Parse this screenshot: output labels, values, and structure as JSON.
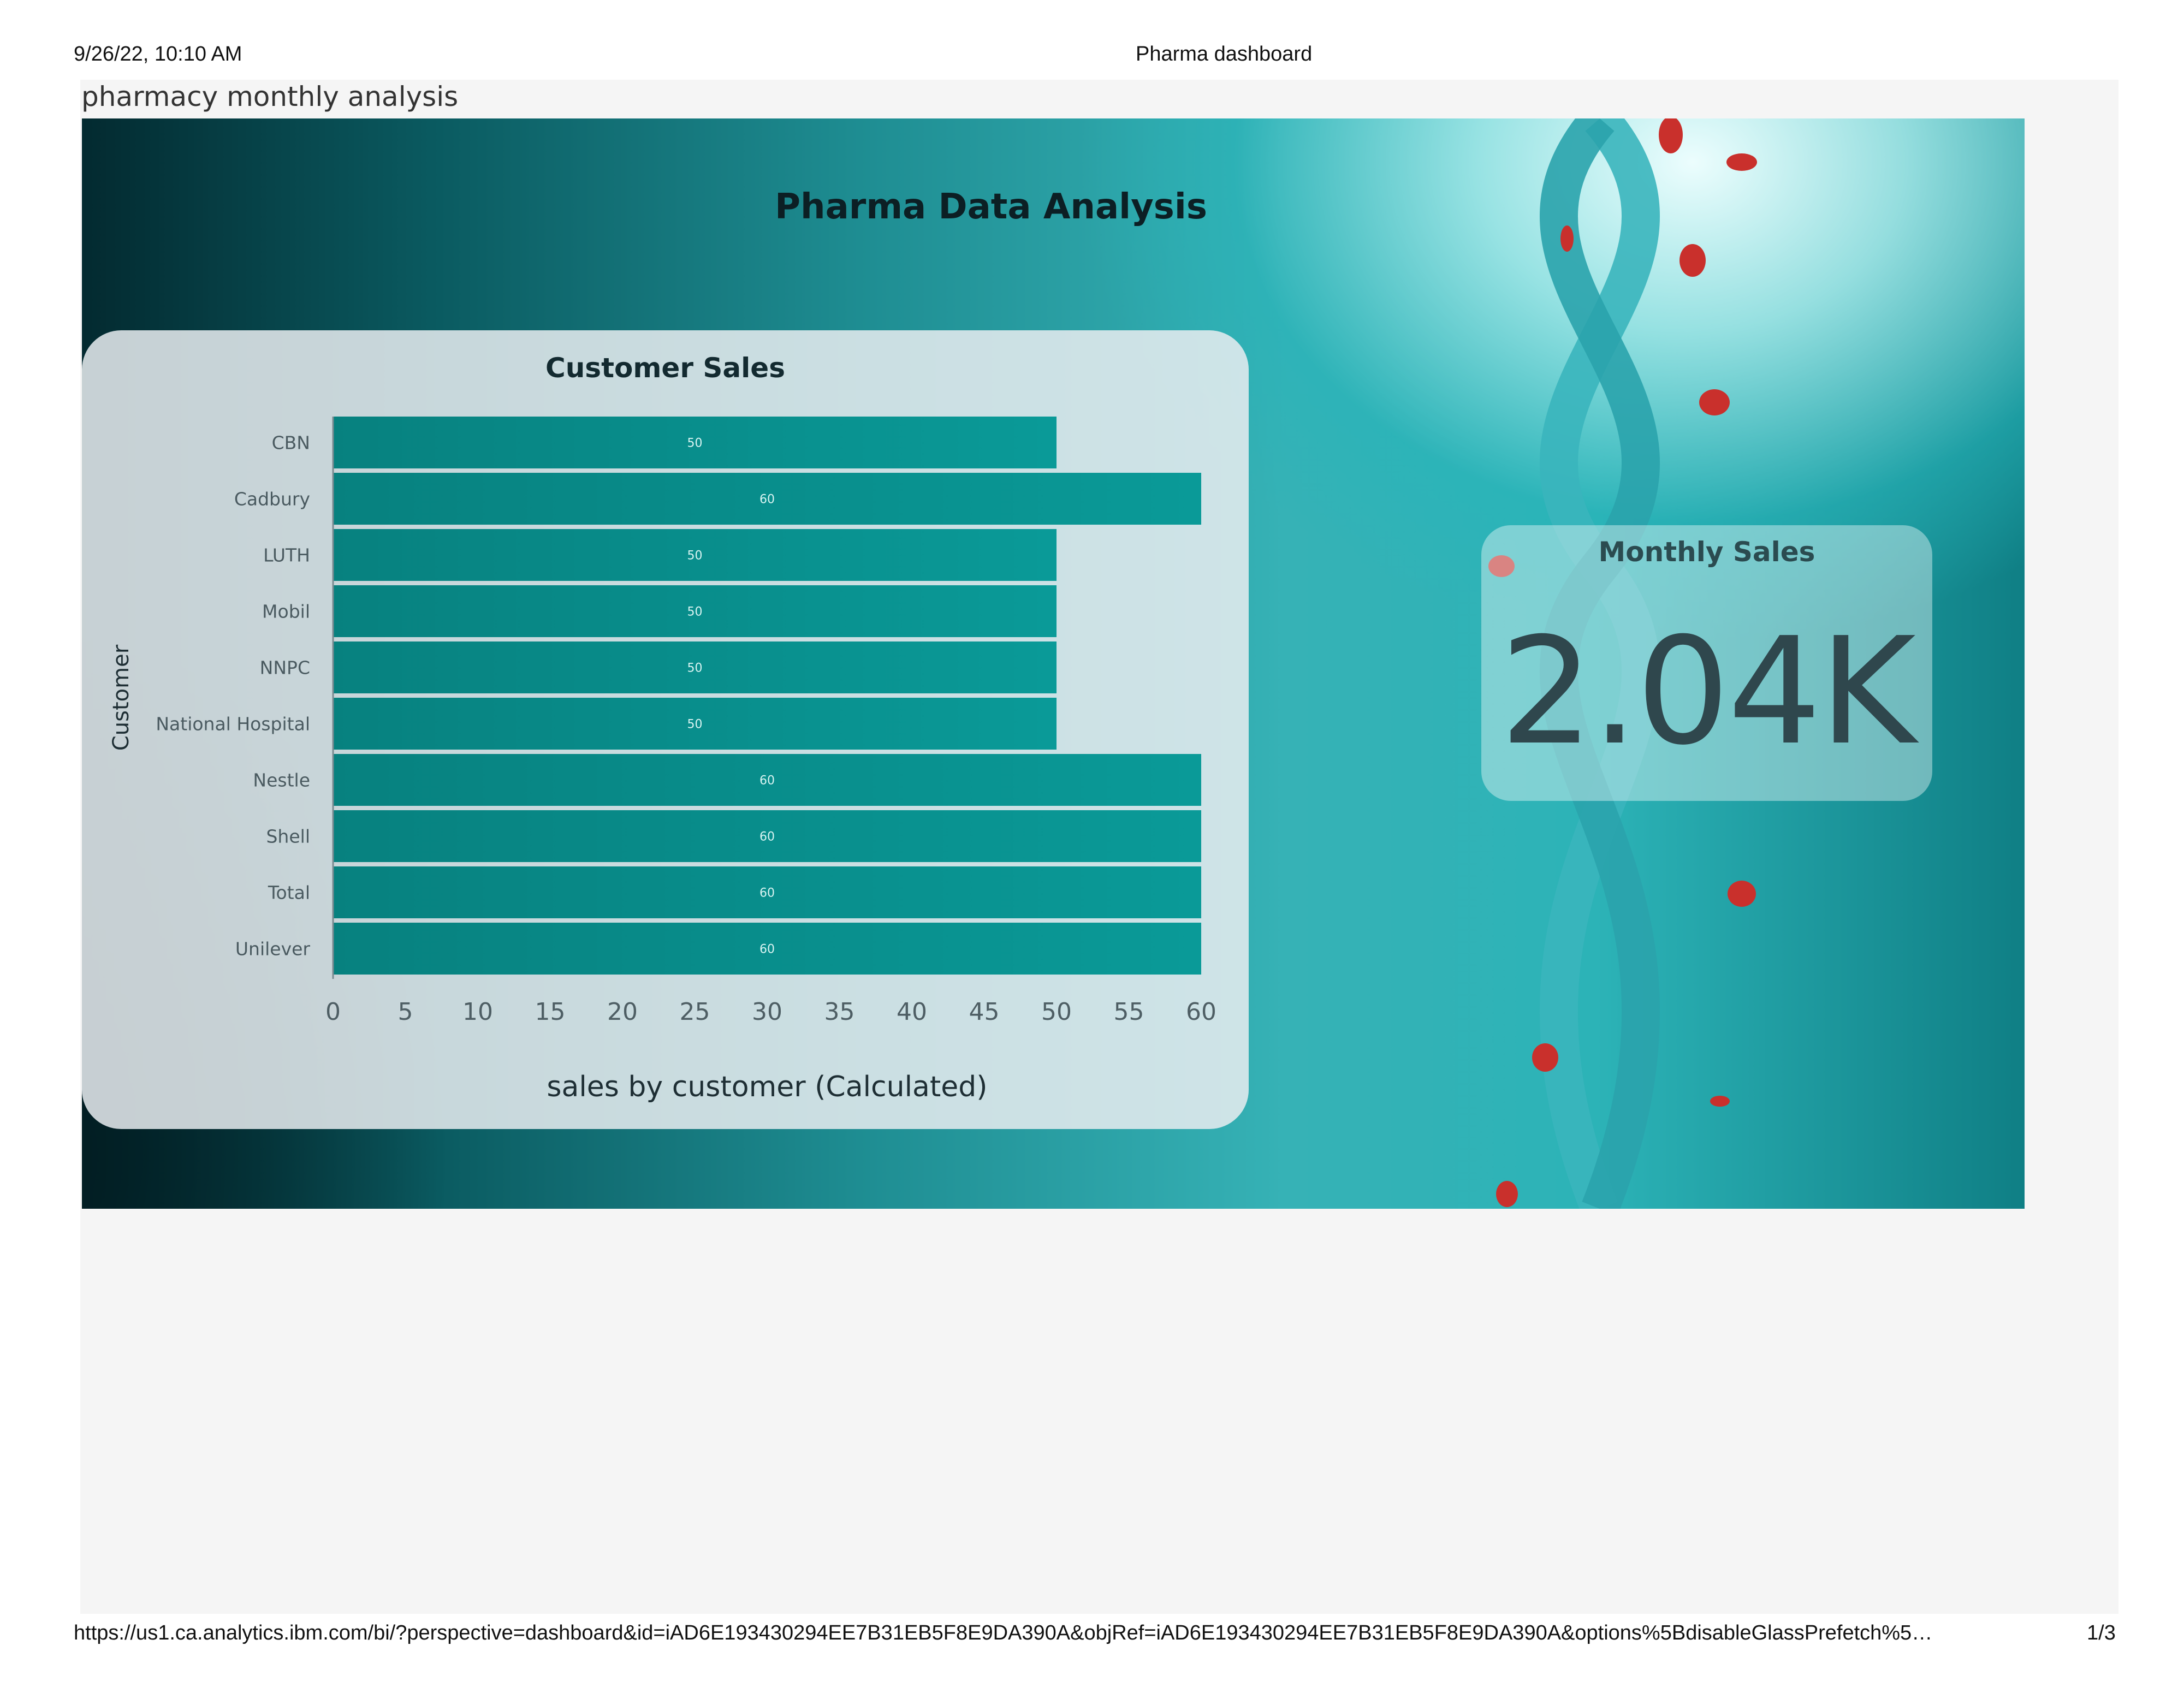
{
  "print_header": {
    "datetime": "9/26/22, 10:10 AM",
    "doc_title": "Pharma dashboard"
  },
  "print_footer": {
    "url": "https://us1.ca.analytics.ibm.com/bi/?perspective=dashboard&id=iAD6E193430294EE7B31EB5F8E9DA390A&objRef=iAD6E193430294EE7B31EB5F8E9DA390A&options%5BdisableGlassPrefetch%5…",
    "page": "1/3"
  },
  "tab": {
    "title": "pharmacy monthly analysis"
  },
  "dashboard": {
    "title": "Pharma Data Analysis"
  },
  "kpi": {
    "label": "Monthly Sales",
    "value": "2.04K"
  },
  "colors": {
    "bar": "#0a9a98",
    "bar_dark": "#07817f",
    "card_bg": "#e8ecf0",
    "text_dark": "#132a30"
  },
  "chart_data": {
    "type": "bar",
    "orientation": "horizontal",
    "title": "Customer Sales",
    "xlabel": "sales by customer (Calculated)",
    "ylabel": "Customer",
    "categories": [
      "CBN",
      "Cadbury",
      "LUTH",
      "Mobil",
      "NNPC",
      "National Hospital",
      "Nestle",
      "Shell",
      "Total",
      "Unilever"
    ],
    "values": [
      50,
      60,
      50,
      50,
      50,
      50,
      60,
      60,
      60,
      60
    ],
    "xlim": [
      0,
      60
    ],
    "xticks": [
      0,
      5,
      10,
      15,
      20,
      25,
      30,
      35,
      40,
      45,
      50,
      55,
      60
    ],
    "data_labels": true,
    "grid": false
  }
}
